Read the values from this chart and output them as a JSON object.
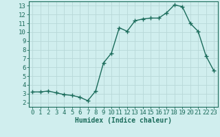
{
  "x": [
    0,
    1,
    2,
    3,
    4,
    5,
    6,
    7,
    8,
    9,
    10,
    11,
    12,
    13,
    14,
    15,
    16,
    17,
    18,
    19,
    20,
    21,
    22,
    23
  ],
  "y": [
    3.2,
    3.2,
    3.3,
    3.1,
    2.9,
    2.8,
    2.6,
    2.2,
    3.3,
    6.5,
    7.6,
    10.5,
    10.1,
    11.3,
    11.5,
    11.6,
    11.6,
    12.2,
    13.1,
    12.9,
    11.0,
    10.1,
    7.3,
    5.6
  ],
  "line_color": "#1a6b5a",
  "marker": "+",
  "marker_size": 4,
  "bg_color": "#d0eeee",
  "grid_color": "#b8d8d8",
  "xlabel": "Humidex (Indice chaleur)",
  "xlim": [
    -0.5,
    23.5
  ],
  "ylim": [
    1.5,
    13.5
  ],
  "xtick_labels": [
    "0",
    "1",
    "2",
    "3",
    "4",
    "5",
    "6",
    "7",
    "8",
    "9",
    "10",
    "11",
    "12",
    "13",
    "14",
    "15",
    "16",
    "17",
    "18",
    "19",
    "20",
    "21",
    "22",
    "23"
  ],
  "ytick_labels": [
    "2",
    "3",
    "4",
    "5",
    "6",
    "7",
    "8",
    "9",
    "10",
    "11",
    "12",
    "13"
  ],
  "ytick_values": [
    2,
    3,
    4,
    5,
    6,
    7,
    8,
    9,
    10,
    11,
    12,
    13
  ],
  "xlabel_fontsize": 7,
  "tick_fontsize": 6.5,
  "linewidth": 1.0
}
